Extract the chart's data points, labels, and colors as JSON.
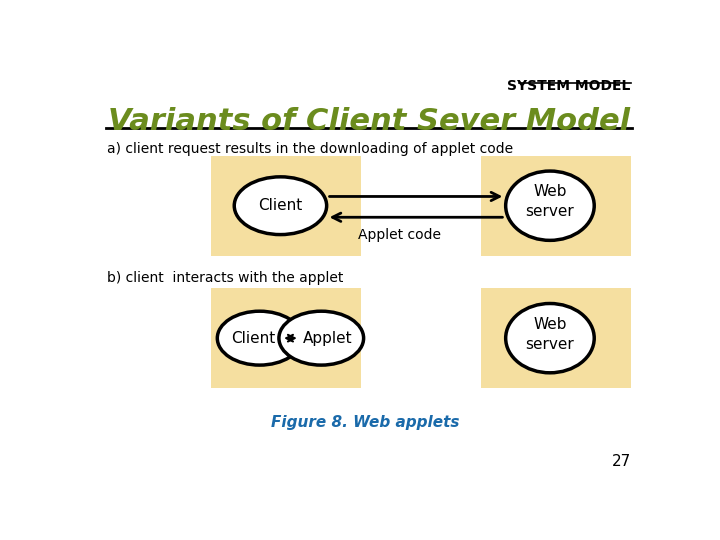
{
  "title": "Variants of Client Sever Model",
  "header": "SYSTEM MODEL",
  "label_a": "a) client request results in the downloading of applet code",
  "label_b": "b) client  interacts with the applet",
  "figure_caption": "Figure 8. Web applets",
  "page_number": "27",
  "bg_color": "#ffffff",
  "box_color": "#f5dfa0",
  "title_color": "#6b8c1e",
  "header_color": "#000000",
  "caption_color": "#1a6aaa",
  "ellipse_facecolor": "#ffffff",
  "ellipse_edgecolor": "#000000"
}
